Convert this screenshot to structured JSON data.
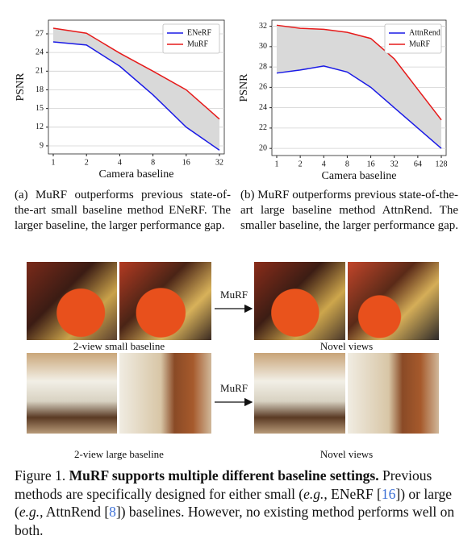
{
  "chart_data": [
    {
      "type": "line",
      "xlabel": "Camera baseline",
      "ylabel": "PSNR",
      "categories": [
        "1",
        "2",
        "4",
        "8",
        "16",
        "32"
      ],
      "series": [
        {
          "name": "ENeRF",
          "color": "#1a1ae6",
          "values": [
            25.7,
            25.2,
            21.8,
            17.2,
            12.0,
            8.3
          ]
        },
        {
          "name": "MuRF",
          "color": "#e61a1a",
          "values": [
            27.9,
            27.1,
            23.9,
            21.0,
            18.0,
            13.3
          ]
        }
      ],
      "ylim": [
        7.7,
        29.2
      ],
      "yticks": [
        9,
        12,
        15,
        18,
        21,
        24,
        27
      ],
      "grid": true,
      "legend": "upper right",
      "shade_between_series": true,
      "shade_color": "#d9d9d9"
    },
    {
      "type": "line",
      "xlabel": "Camera baseline",
      "ylabel": "PSNR",
      "categories": [
        "1",
        "2",
        "4",
        "8",
        "16",
        "32",
        "64",
        "128"
      ],
      "series": [
        {
          "name": "AttnRend",
          "color": "#1a1ae6",
          "values": [
            27.4,
            27.7,
            28.1,
            27.5,
            26.0,
            24.0,
            22.0,
            20.0
          ]
        },
        {
          "name": "MuRF",
          "color": "#e61a1a",
          "values": [
            32.1,
            31.8,
            31.7,
            31.4,
            30.8,
            28.8,
            25.8,
            22.8
          ]
        }
      ],
      "ylim": [
        19.3,
        32.6
      ],
      "yticks": [
        20,
        22,
        24,
        26,
        28,
        30,
        32
      ],
      "grid": true,
      "legend": "upper right",
      "shade_between_series": true,
      "shade_color": "#d9d9d9"
    }
  ],
  "captions": [
    "(a) MuRF outperforms previous state-of-the-art small baseline method ENeRF. The larger baseline, the larger performance gap.",
    "(b) MuRF outperforms previous state-of-the-art large baseline method AttnRend. The smaller baseline, the larger performance gap."
  ],
  "arrow_labels": [
    "MuRF",
    "MuRF"
  ],
  "image_labels": [
    "2-view small baseline",
    "Novel views",
    "2-view large baseline",
    "Novel views"
  ],
  "figure_caption": {
    "prefix": "Figure 1.",
    "headline": "MuRF supports multiple different baseline settings.",
    "parts": [
      "Previous methods are specifically designed for either small (",
      "e.g.",
      ", ENeRF [",
      "16",
      "]) or large (",
      "e.g.",
      ", AttnRend [",
      "8",
      "]) baselines. However, no existing method performs well on both."
    ]
  }
}
